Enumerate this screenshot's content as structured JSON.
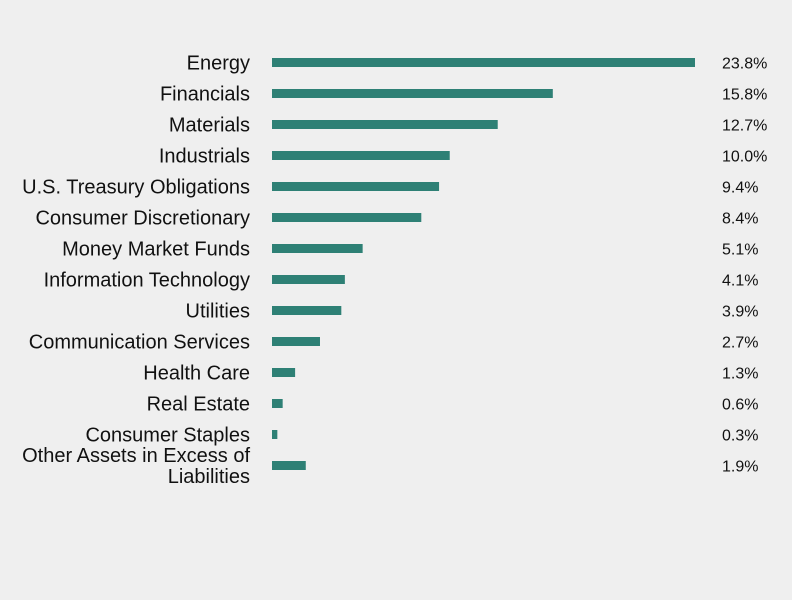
{
  "chart_data": {
    "type": "bar",
    "orientation": "horizontal",
    "categories": [
      "Energy",
      "Financials",
      "Materials",
      "Industrials",
      "U.S. Treasury Obligations",
      "Consumer Discretionary",
      "Money Market Funds",
      "Information Technology",
      "Utilities",
      "Communication Services",
      "Health Care",
      "Real Estate",
      "Consumer Staples",
      "Other Assets in Excess of Liabilities"
    ],
    "category_lines": [
      [
        "Energy"
      ],
      [
        "Financials"
      ],
      [
        "Materials"
      ],
      [
        "Industrials"
      ],
      [
        "U.S. Treasury Obligations"
      ],
      [
        "Consumer Discretionary"
      ],
      [
        "Money Market Funds"
      ],
      [
        "Information Technology"
      ],
      [
        "Utilities"
      ],
      [
        "Communication Services"
      ],
      [
        "Health Care"
      ],
      [
        "Real Estate"
      ],
      [
        "Consumer Staples"
      ],
      [
        "Other Assets in Excess of",
        "Liabilities"
      ]
    ],
    "values": [
      23.8,
      15.8,
      12.7,
      10.0,
      9.4,
      8.4,
      5.1,
      4.1,
      3.9,
      2.7,
      1.3,
      0.6,
      0.3,
      1.9
    ],
    "value_labels": [
      "23.8%",
      "15.8%",
      "12.7%",
      "10.0%",
      "9.4%",
      "8.4%",
      "5.1%",
      "4.1%",
      "3.9%",
      "2.7%",
      "1.3%",
      "0.6%",
      "0.3%",
      "1.9%"
    ],
    "xlim": [
      0,
      23.8
    ],
    "grid": false,
    "legend": "none",
    "colors": {
      "bar": "#2e8075",
      "background": "#efefef",
      "text": "#111111"
    }
  }
}
